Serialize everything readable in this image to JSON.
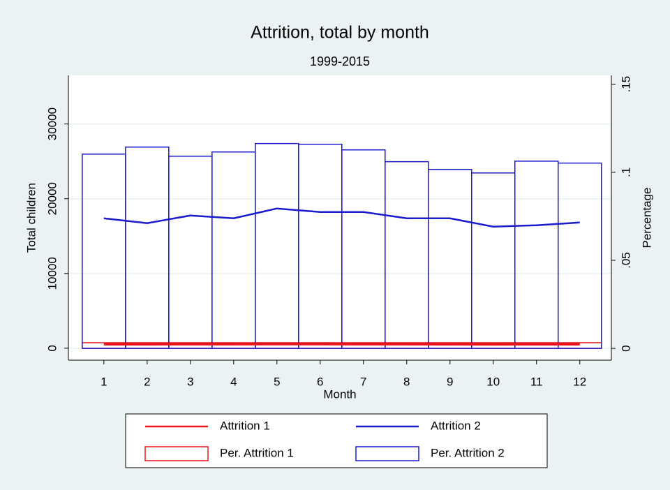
{
  "chart_data": {
    "type": "combo",
    "title": "Attrition, total by month",
    "subtitle": "1999-2015",
    "x_label": "Month",
    "y_label": "Total children",
    "y2_label": "Percentage",
    "x": [
      1,
      2,
      3,
      4,
      5,
      6,
      7,
      8,
      9,
      10,
      11,
      12
    ],
    "xlim": [
      0.18,
      12.73
    ],
    "xticks": [
      1,
      2,
      3,
      4,
      5,
      6,
      7,
      8,
      9,
      10,
      11,
      12
    ],
    "ylim": [
      -1600,
      36500
    ],
    "yticks": [
      0,
      10000,
      20000,
      30000
    ],
    "y2lim": [
      -0.0067,
      0.155
    ],
    "y2ticks": [
      {
        "value": 0,
        "label": "0"
      },
      {
        "value": 0.05,
        "label": ".05"
      },
      {
        "value": 0.1,
        "label": ".1"
      },
      {
        "value": 0.15,
        "label": ".15"
      }
    ],
    "grid": true,
    "series": [
      {
        "name": "Attrition 1",
        "kind": "line",
        "color": "#e8141b",
        "values": [
          550,
          550,
          560,
          560,
          570,
          570,
          560,
          560,
          550,
          540,
          550,
          550
        ]
      },
      {
        "name": "Attrition 2",
        "kind": "line",
        "color": "#1a1acf",
        "values": [
          17383,
          16729,
          17757,
          17383,
          18692,
          18224,
          18224,
          17383,
          17383,
          16262,
          16449,
          16822
        ]
      },
      {
        "name": "Per. Attrition 1",
        "kind": "bar",
        "axis": "y2",
        "color": "#e8141b",
        "values": [
          0.0032,
          0.0032,
          0.0032,
          0.0032,
          0.0032,
          0.0032,
          0.0032,
          0.0032,
          0.0032,
          0.0032,
          0.0032,
          0.0032
        ]
      },
      {
        "name": "Per. Attrition 2",
        "kind": "bar",
        "axis": "y2",
        "color": "#1a1acf",
        "values": [
          0.1103,
          0.1143,
          0.1091,
          0.1115,
          0.1163,
          0.1159,
          0.1127,
          0.106,
          0.1016,
          0.0996,
          0.1063,
          0.1052
        ]
      }
    ]
  }
}
